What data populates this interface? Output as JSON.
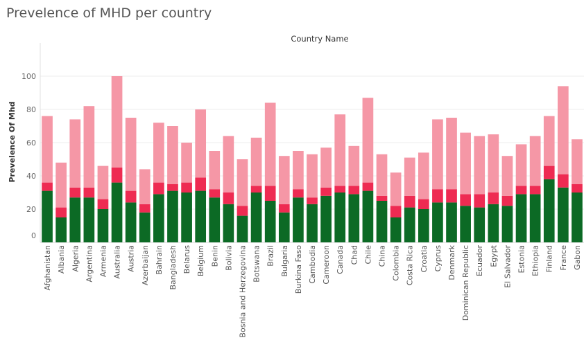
{
  "title": "Prevelence of MHD per country",
  "chart_data": {
    "type": "bar",
    "stacked": true,
    "title": "Prevelence of MHD per country",
    "top_header": "Country Name",
    "xlabel": "",
    "ylabel": "Prevelence Of Mhd",
    "ylim": [
      0,
      115
    ],
    "yticks": [
      0,
      20,
      40,
      60,
      80,
      100
    ],
    "grid": "horizontal",
    "colors": [
      "#0c6a25",
      "#ee2b52",
      "#f597a6"
    ],
    "categories": [
      "Afghanistan",
      "Albania",
      "Algeria",
      "Argentina",
      "Armenia",
      "Australia",
      "Austria",
      "Azerbaijan",
      "Bahrain",
      "Bangladesh",
      "Belarus",
      "Belgium",
      "Benin",
      "Bolivia",
      "Bosnia and Herzegovina",
      "Botswana",
      "Brazil",
      "Bulgaria",
      "Burkina Faso",
      "Cambodia",
      "Cameroon",
      "Canada",
      "Chad",
      "Chile",
      "China",
      "Colombia",
      "Costa Rica",
      "Croatia",
      "Cyprus",
      "Denmark",
      "Dominican Republic",
      "Ecuador",
      "Egypt",
      "El Salvador",
      "Estonia",
      "Ethiopia",
      "Finland",
      "France",
      "Gabon"
    ],
    "series": [
      {
        "values": [
          31,
          15,
          27,
          27,
          20,
          36,
          24,
          18,
          29,
          31,
          30,
          31,
          27,
          23,
          16,
          30,
          25,
          18,
          27,
          23,
          28,
          30,
          29,
          31,
          25,
          15,
          21,
          20,
          24,
          24,
          22,
          21,
          23,
          22,
          29,
          29,
          38,
          33,
          30
        ]
      },
      {
        "values": [
          5,
          6,
          6,
          6,
          6,
          9,
          7,
          5,
          7,
          4,
          6,
          8,
          5,
          7,
          6,
          4,
          9,
          5,
          5,
          4,
          5,
          4,
          5,
          5,
          3,
          7,
          7,
          6,
          8,
          8,
          7,
          8,
          7,
          6,
          5,
          5,
          8,
          8,
          5
        ]
      },
      {
        "values": [
          40,
          27,
          41,
          49,
          20,
          55,
          44,
          21,
          36,
          35,
          24,
          41,
          23,
          34,
          28,
          29,
          50,
          29,
          23,
          26,
          24,
          43,
          24,
          51,
          25,
          20,
          23,
          28,
          42,
          43,
          37,
          35,
          35,
          24,
          25,
          30,
          30,
          53,
          27
        ]
      }
    ]
  }
}
